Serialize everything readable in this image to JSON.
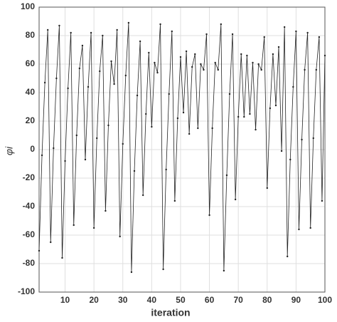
{
  "chart_data": {
    "type": "line",
    "xlabel": "iteration",
    "ylabel": "φi",
    "x": [
      1,
      2,
      3,
      4,
      5,
      6,
      7,
      8,
      9,
      10,
      11,
      12,
      13,
      14,
      15,
      16,
      17,
      18,
      19,
      20,
      21,
      22,
      23,
      24,
      25,
      26,
      27,
      28,
      29,
      30,
      31,
      32,
      33,
      34,
      35,
      36,
      37,
      38,
      39,
      40,
      41,
      42,
      43,
      44,
      45,
      46,
      47,
      48,
      49,
      50,
      51,
      52,
      53,
      54,
      55,
      56,
      57,
      58,
      59,
      60,
      61,
      62,
      63,
      64,
      65,
      66,
      67,
      68,
      69,
      70,
      71,
      72,
      73,
      74,
      75,
      76,
      77,
      78,
      79,
      80,
      81,
      82,
      83,
      84,
      85,
      86,
      87,
      88,
      89,
      90,
      91,
      92,
      93,
      94,
      95,
      96,
      97,
      98,
      99,
      100
    ],
    "series": [
      {
        "color": "#222222",
        "values": [
          -71,
          -4,
          47,
          84,
          -65,
          1,
          50,
          87,
          -76,
          -8,
          43,
          82,
          -53,
          10,
          57,
          73,
          -7,
          44,
          82,
          -55,
          8,
          55,
          80,
          -43,
          17,
          62,
          46,
          84,
          -61,
          4,
          52,
          89,
          -86,
          -15,
          38,
          76,
          -32,
          25,
          68,
          16,
          61,
          54,
          88,
          -84,
          -14,
          39,
          83,
          -36,
          22,
          65,
          26,
          69,
          11,
          58,
          67,
          15,
          60,
          56,
          81,
          -46,
          15,
          61,
          56,
          88,
          -85,
          -18,
          39,
          81,
          -35,
          23,
          67,
          23,
          66,
          25,
          61,
          14,
          60,
          56,
          79,
          -27,
          29,
          67,
          31,
          72,
          -1,
          86,
          -75,
          -7,
          44,
          83,
          -56,
          7,
          56,
          82,
          -55,
          8,
          56,
          79,
          -36,
          66
        ]
      }
    ],
    "xlim": [
      1,
      100
    ],
    "ylim": [
      -100,
      100
    ],
    "xticks": [
      10,
      20,
      30,
      40,
      50,
      60,
      70,
      80,
      90,
      100
    ],
    "yticks": [
      -100,
      -80,
      -60,
      -40,
      -20,
      0,
      20,
      40,
      60,
      80,
      100
    ],
    "grid": true
  }
}
